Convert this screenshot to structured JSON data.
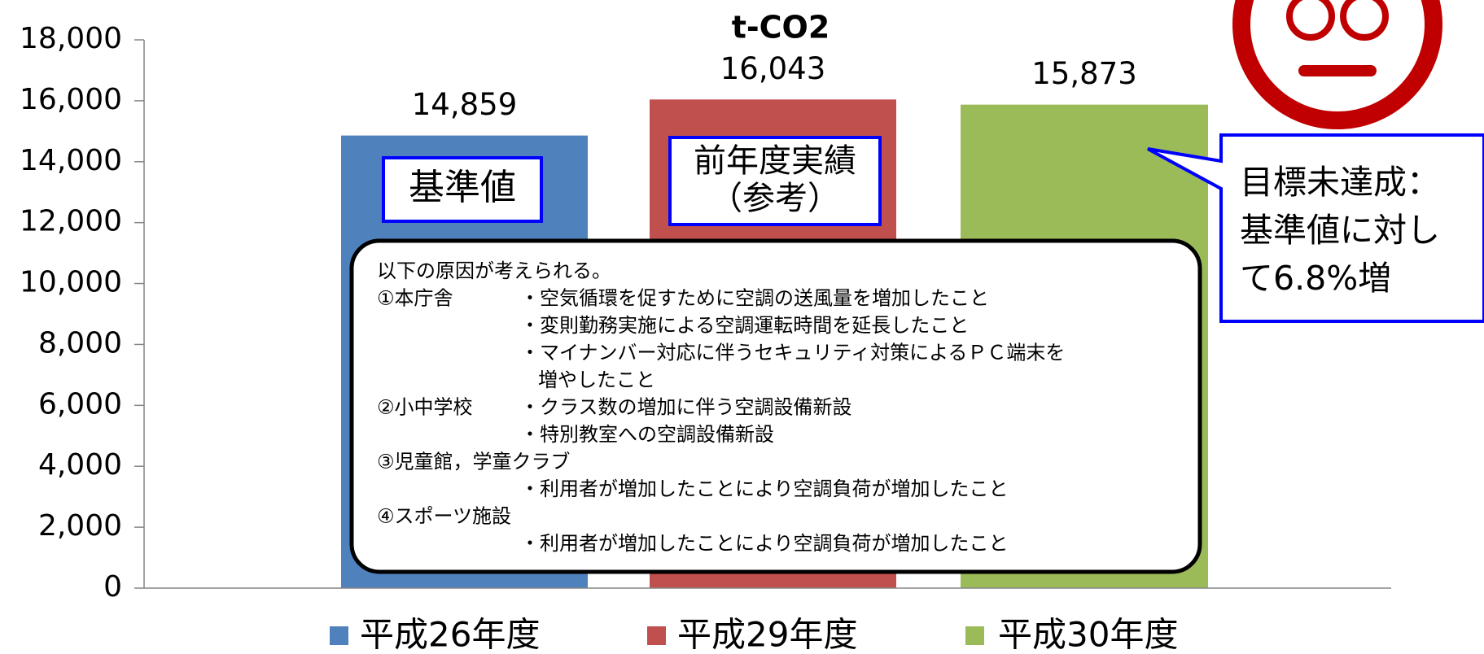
{
  "chart_data": {
    "type": "bar",
    "title": "t-CO2",
    "categories": [
      "平成26年度",
      "平成29年度",
      "平成30年度"
    ],
    "values": [
      14859,
      16043,
      15873
    ],
    "value_labels": [
      "14,859",
      "16,043",
      "15,873"
    ],
    "colors": [
      "#4f81bd",
      "#c0504d",
      "#9bbb59"
    ],
    "ylim": [
      0,
      18000
    ],
    "yticks": [
      0,
      {
        "value": 2000,
        "label": "2,000"
      },
      {
        "value": 4000,
        "label": "4,000"
      },
      {
        "value": 6000,
        "label": "6,000"
      },
      {
        "value": 8000,
        "label": "8,000"
      },
      {
        "value": 10000,
        "label": "10,000"
      },
      {
        "value": 12000,
        "label": "12,000"
      },
      {
        "value": 14000,
        "label": "14,000"
      },
      {
        "value": 16000,
        "label": "16,000"
      },
      {
        "value": 18000,
        "label": "18,000"
      }
    ],
    "grid": false,
    "legend": "bottom",
    "bar_notes": [
      [
        "基準値"
      ],
      [
        "前年度実績",
        "（参考）"
      ]
    ],
    "note": [
      {
        "head": "以下の原因が考えられる。"
      },
      {
        "head": "①本庁舎",
        "text": "・空気循環を促すために空調の送風量を増加したこと"
      },
      {
        "text": "・変則勤務実施による空調運転時間を延長したこと"
      },
      {
        "text": "・マイナンバー対応に伴うセキュリティ対策によるＰＣ端末を"
      },
      {
        "text": "増やしたこと"
      },
      {
        "head": "②小中学校",
        "text": "・クラス数の増加に伴う空調設備新設"
      },
      {
        "text": "・特別教室への空調設備新設"
      },
      {
        "head": "③児童館，学童クラブ"
      },
      {
        "text": "・利用者が増加したことにより空調負荷が増加したこと"
      },
      {
        "head": "④スポーツ施設"
      },
      {
        "text": "・利用者が増加したことにより空調負荷が増加したこと"
      }
    ],
    "callout": [
      "目標未達成：",
      "基準値に対し",
      "て6.8%増"
    ]
  }
}
